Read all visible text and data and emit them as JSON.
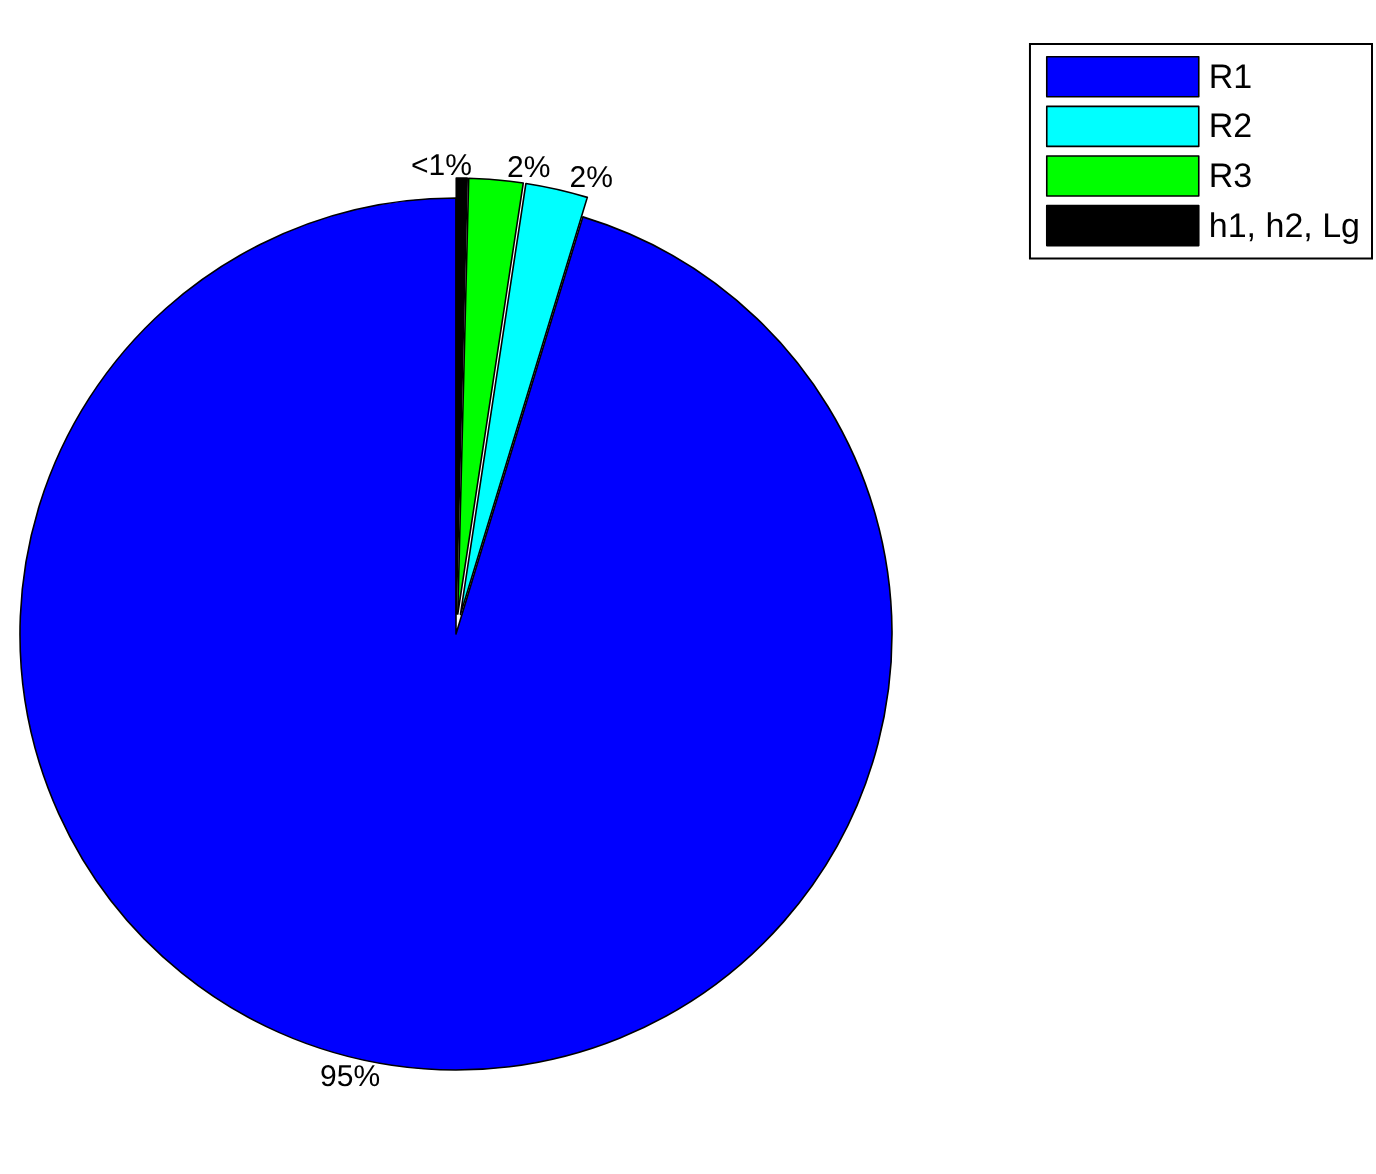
{
  "chart_data": {
    "type": "pie",
    "categories": [
      "R1",
      "R2",
      "R3",
      "h1, h2, Lg"
    ],
    "values": [
      95.3,
      2.3,
      2.0,
      0.4
    ],
    "colors": [
      "#0000ff",
      "#00ffff",
      "#00ff00",
      "#000000"
    ],
    "value_labels": [
      "95%",
      "2%",
      "2%",
      "<1%"
    ],
    "legend": "top right"
  }
}
